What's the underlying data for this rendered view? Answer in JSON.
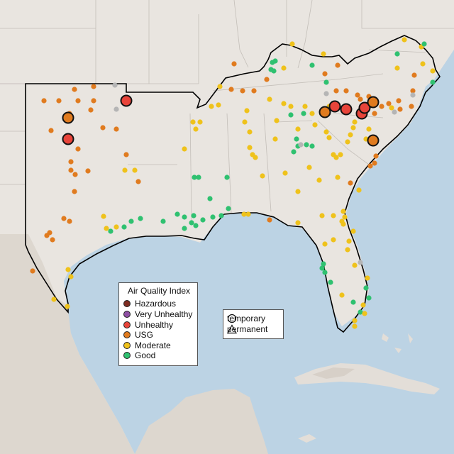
{
  "map": {
    "legend_title": "Air Quality Index",
    "categories": [
      {
        "label": "Hazardous",
        "color": "#7e2c21"
      },
      {
        "label": "Very Unhealthy",
        "color": "#8e4fa3"
      },
      {
        "label": "Unhealthy",
        "color": "#e8443a"
      },
      {
        "label": "USG",
        "color": "#e07b1f"
      },
      {
        "label": "Moderate",
        "color": "#efc21b"
      },
      {
        "label": "Good",
        "color": "#2fc170"
      }
    ],
    "no_data_color": "#b5b5b5",
    "marker_types": [
      {
        "label": "temporary",
        "icon": "circle-icon"
      },
      {
        "label": "permanent",
        "icon": "triangle-icon"
      }
    ],
    "colors": {
      "ocean": "#bcd3e4",
      "land": "#e9e5e0",
      "region": "#ebe6e1",
      "mexico_terrain": "#ddd7cf"
    }
  }
}
